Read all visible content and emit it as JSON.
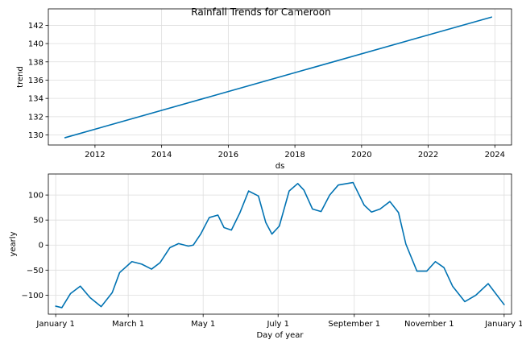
{
  "title": "Rainfall Trends for Cameroon",
  "colors": {
    "line": "#0072b2",
    "grid": "#dddddd"
  },
  "chart_data": [
    {
      "type": "line",
      "name": "trend",
      "xlabel": "ds",
      "ylabel": "trend",
      "xlim": [
        2010.6,
        2024.5
      ],
      "ylim": [
        128.9,
        143.8
      ],
      "xticks": [
        2012,
        2014,
        2016,
        2018,
        2020,
        2022,
        2024
      ],
      "xtick_labels": [
        "2012",
        "2014",
        "2016",
        "2018",
        "2020",
        "2022",
        "2024"
      ],
      "yticks": [
        130,
        132,
        134,
        136,
        138,
        140,
        142
      ],
      "ytick_labels": [
        "130",
        "132",
        "134",
        "136",
        "138",
        "140",
        "142"
      ],
      "grid": true,
      "series": [
        {
          "x": [
            2011.1,
            2023.9
          ],
          "y": [
            129.7,
            142.9
          ]
        }
      ]
    },
    {
      "type": "line",
      "name": "yearly",
      "xlabel": "Day of year",
      "ylabel": "yearly",
      "xlim": [
        -6,
        371
      ],
      "ylim": [
        -138,
        142
      ],
      "xticks": [
        0,
        59,
        120,
        181,
        243,
        304,
        365
      ],
      "xtick_labels": [
        "January 1",
        "March 1",
        "May 1",
        "July 1",
        "September 1",
        "November 1",
        "January 1"
      ],
      "yticks": [
        -100,
        -50,
        0,
        50,
        100
      ],
      "ytick_labels": [
        "−100",
        "−50",
        "0",
        "50",
        "100"
      ],
      "grid": true,
      "series": [
        {
          "x": [
            0,
            5,
            12,
            20,
            28,
            37,
            46,
            52,
            62,
            70,
            78,
            85,
            93,
            100,
            108,
            112,
            118,
            125,
            132,
            137,
            143,
            150,
            157,
            165,
            171,
            176,
            182,
            190,
            197,
            202,
            209,
            216,
            223,
            230,
            242,
            251,
            257,
            264,
            272,
            279,
            285,
            294,
            302,
            309,
            316,
            323,
            333,
            342,
            352,
            365
          ],
          "y": [
            -122,
            -125,
            -97,
            -82,
            -105,
            -123,
            -95,
            -55,
            -33,
            -38,
            -48,
            -35,
            -5,
            3,
            -2,
            0,
            22,
            55,
            60,
            35,
            30,
            65,
            108,
            98,
            45,
            22,
            38,
            108,
            123,
            110,
            72,
            67,
            100,
            120,
            125,
            80,
            66,
            72,
            87,
            65,
            2,
            -52,
            -52,
            -33,
            -45,
            -82,
            -113,
            -100,
            -77,
            -119
          ]
        }
      ]
    }
  ]
}
